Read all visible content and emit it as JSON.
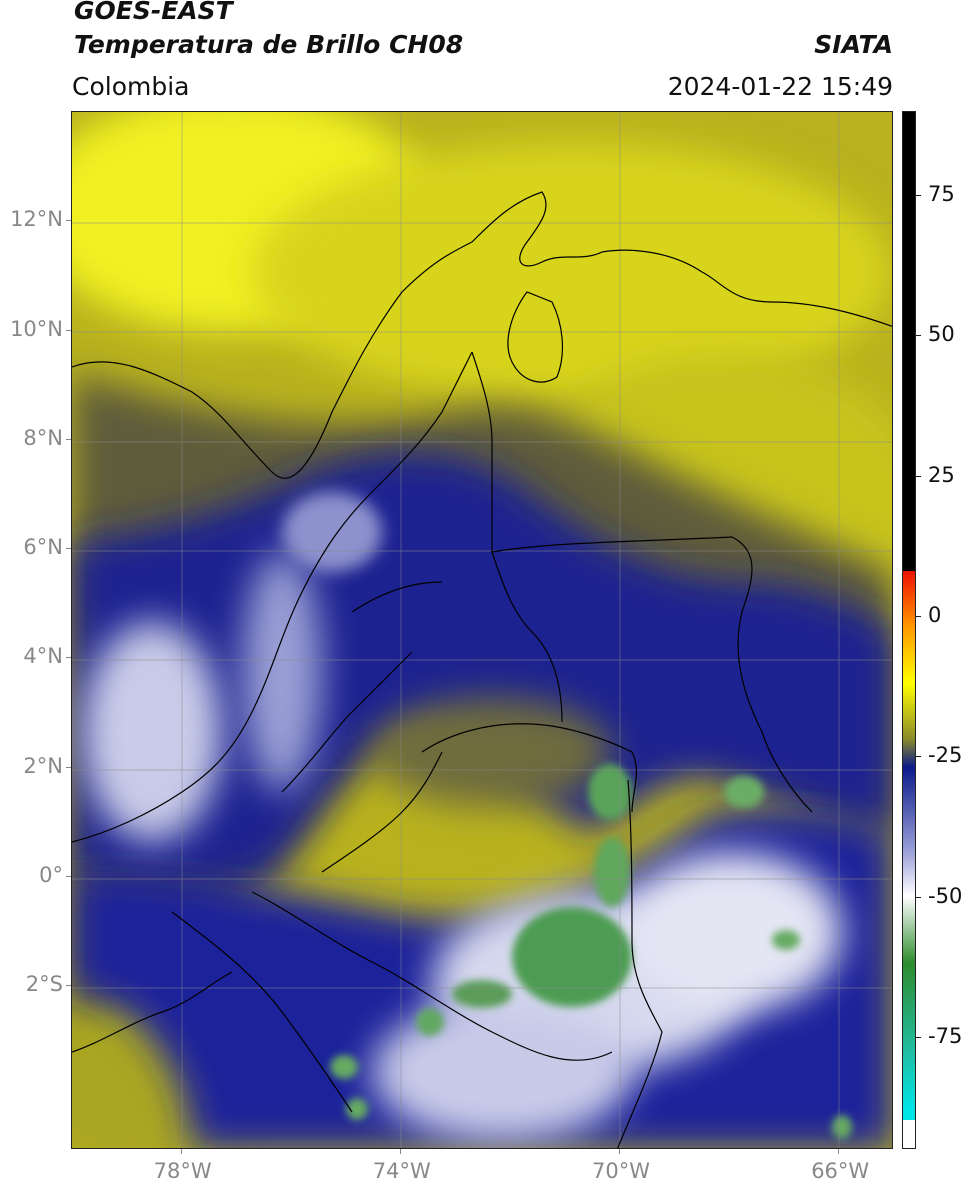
{
  "header": {
    "line1": "GOES-EAST",
    "line2": "Temperatura de Brillo CH08",
    "region": "Colombia",
    "brand": "SIATA",
    "datetime": "2024-01-22 15:49"
  },
  "map": {
    "lat_ticks": [
      {
        "value": 12,
        "label": "12°N"
      },
      {
        "value": 10,
        "label": "10°N"
      },
      {
        "value": 8,
        "label": "8°N"
      },
      {
        "value": 6,
        "label": "6°N"
      },
      {
        "value": 4,
        "label": "4°N"
      },
      {
        "value": 2,
        "label": "2°N"
      },
      {
        "value": 0,
        "label": "0°"
      },
      {
        "value": -2,
        "label": "2°S"
      }
    ],
    "lon_ticks": [
      {
        "value": -78,
        "label": "78°W"
      },
      {
        "value": -74,
        "label": "74°W"
      },
      {
        "value": -70,
        "label": "70°W"
      },
      {
        "value": -66,
        "label": "66°W"
      }
    ],
    "extent": {
      "lon_min": -80,
      "lon_max": -65,
      "lat_min": -5,
      "lat_max": 14
    }
  },
  "colorbar": {
    "range": [
      -95,
      90
    ],
    "ticks": [
      {
        "value": 75,
        "label": "75"
      },
      {
        "value": 50,
        "label": "50"
      },
      {
        "value": 25,
        "label": "25"
      },
      {
        "value": 0,
        "label": "0"
      },
      {
        "value": -25,
        "label": "-25"
      },
      {
        "value": -50,
        "label": "-50"
      },
      {
        "value": -75,
        "label": "-75"
      }
    ],
    "colors": {
      "black": "#000000",
      "red": "#ee1100",
      "orange": "#ff9900",
      "yellow": "#ffff00",
      "olive": "#8a8a2a",
      "navy": "#0b1a8a",
      "white": "#ffffff",
      "green": "#2e8b2e",
      "teal": "#1fbfa5",
      "cyan": "#00e5e5"
    }
  }
}
